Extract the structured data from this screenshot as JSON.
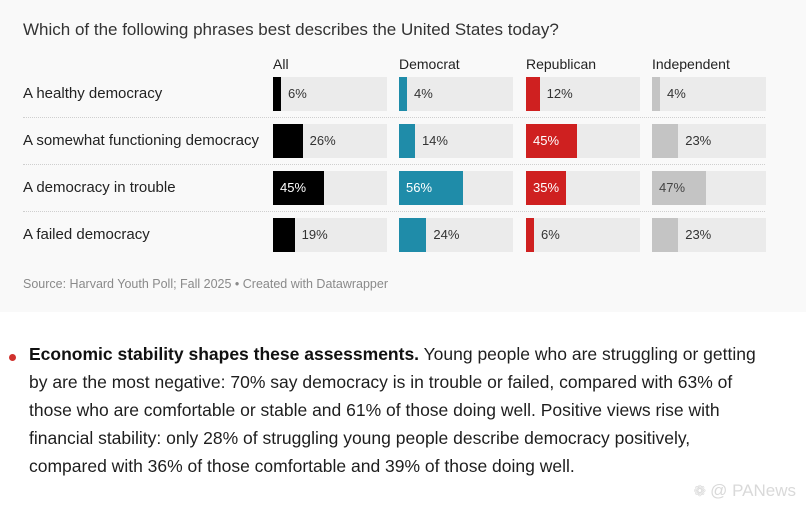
{
  "chart_data": {
    "type": "bar",
    "title": "Which of the following phrases best describes the United States today?",
    "categories": [
      "A healthy democracy",
      "A somewhat functioning democracy",
      "A democracy in trouble",
      "A failed democracy"
    ],
    "series": [
      {
        "name": "All",
        "color": "#000000",
        "values": [
          6,
          26,
          45,
          19
        ]
      },
      {
        "name": "Democrat",
        "color": "#1f8ca9",
        "values": [
          4,
          14,
          56,
          24
        ]
      },
      {
        "name": "Republican",
        "color": "#cf2020",
        "values": [
          12,
          45,
          35,
          6
        ]
      },
      {
        "name": "Independent",
        "color": "#c4c4c4",
        "values": [
          4,
          23,
          47,
          23
        ]
      }
    ],
    "value_suffix": "%",
    "xlim": [
      0,
      100
    ]
  },
  "source": "Source: Harvard Youth Poll; Fall 2025 • Created with Datawrapper",
  "article": {
    "lead": "Economic stability shapes these assessments.",
    "body": " Young people who are struggling or getting by are the most negative: 70% say democracy is in trouble or failed, compared with 63% of those who are comfortable or stable and 61% of those doing well. Positive views rise with financial stability: only 28% of struggling young people describe democracy positively, compared with 36% of those comfortable and 39% of those doing well."
  },
  "watermark": {
    "icon": "wechat-icon",
    "text": "@ PANews"
  }
}
